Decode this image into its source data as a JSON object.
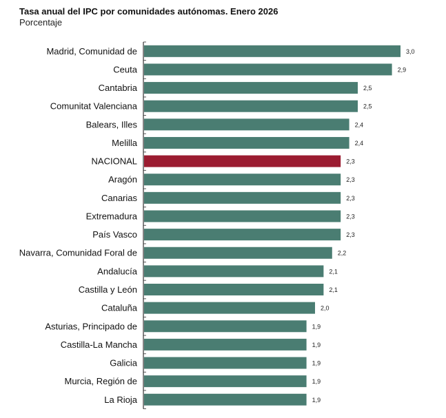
{
  "chart_data": {
    "type": "bar",
    "orientation": "horizontal",
    "title": "Tasa anual del IPC por comunidades autónomas. Enero 2026",
    "subtitle": "Porcentaje",
    "categories": [
      "Madrid, Comunidad de",
      "Ceuta",
      "Cantabria",
      "Comunitat Valenciana",
      "Balears, Illes",
      "Melilla",
      "NACIONAL",
      "Aragón",
      "Canarias",
      "Extremadura",
      "País Vasco",
      "Navarra, Comunidad Foral de",
      "Andalucía",
      "Castilla y León",
      "Cataluña",
      "Asturias, Principado de",
      "Castilla-La Mancha",
      "Galicia",
      "Murcia, Región de",
      "La Rioja"
    ],
    "values": [
      3.0,
      2.9,
      2.5,
      2.5,
      2.4,
      2.4,
      2.3,
      2.3,
      2.3,
      2.3,
      2.3,
      2.2,
      2.1,
      2.1,
      2.0,
      1.9,
      1.9,
      1.9,
      1.9,
      1.9
    ],
    "value_labels": [
      "3,0",
      "2,9",
      "2,5",
      "2,5",
      "2,4",
      "2,4",
      "2,3",
      "2,3",
      "2,3",
      "2,3",
      "2,3",
      "2,2",
      "2,1",
      "2,1",
      "2,0",
      "1,9",
      "1,9",
      "1,9",
      "1,9",
      "1,9"
    ],
    "highlight": "NACIONAL",
    "colors": {
      "bar": "#4a7d72",
      "highlight": "#9b1c31"
    },
    "xlim": [
      0,
      3.0
    ],
    "grid": false
  }
}
